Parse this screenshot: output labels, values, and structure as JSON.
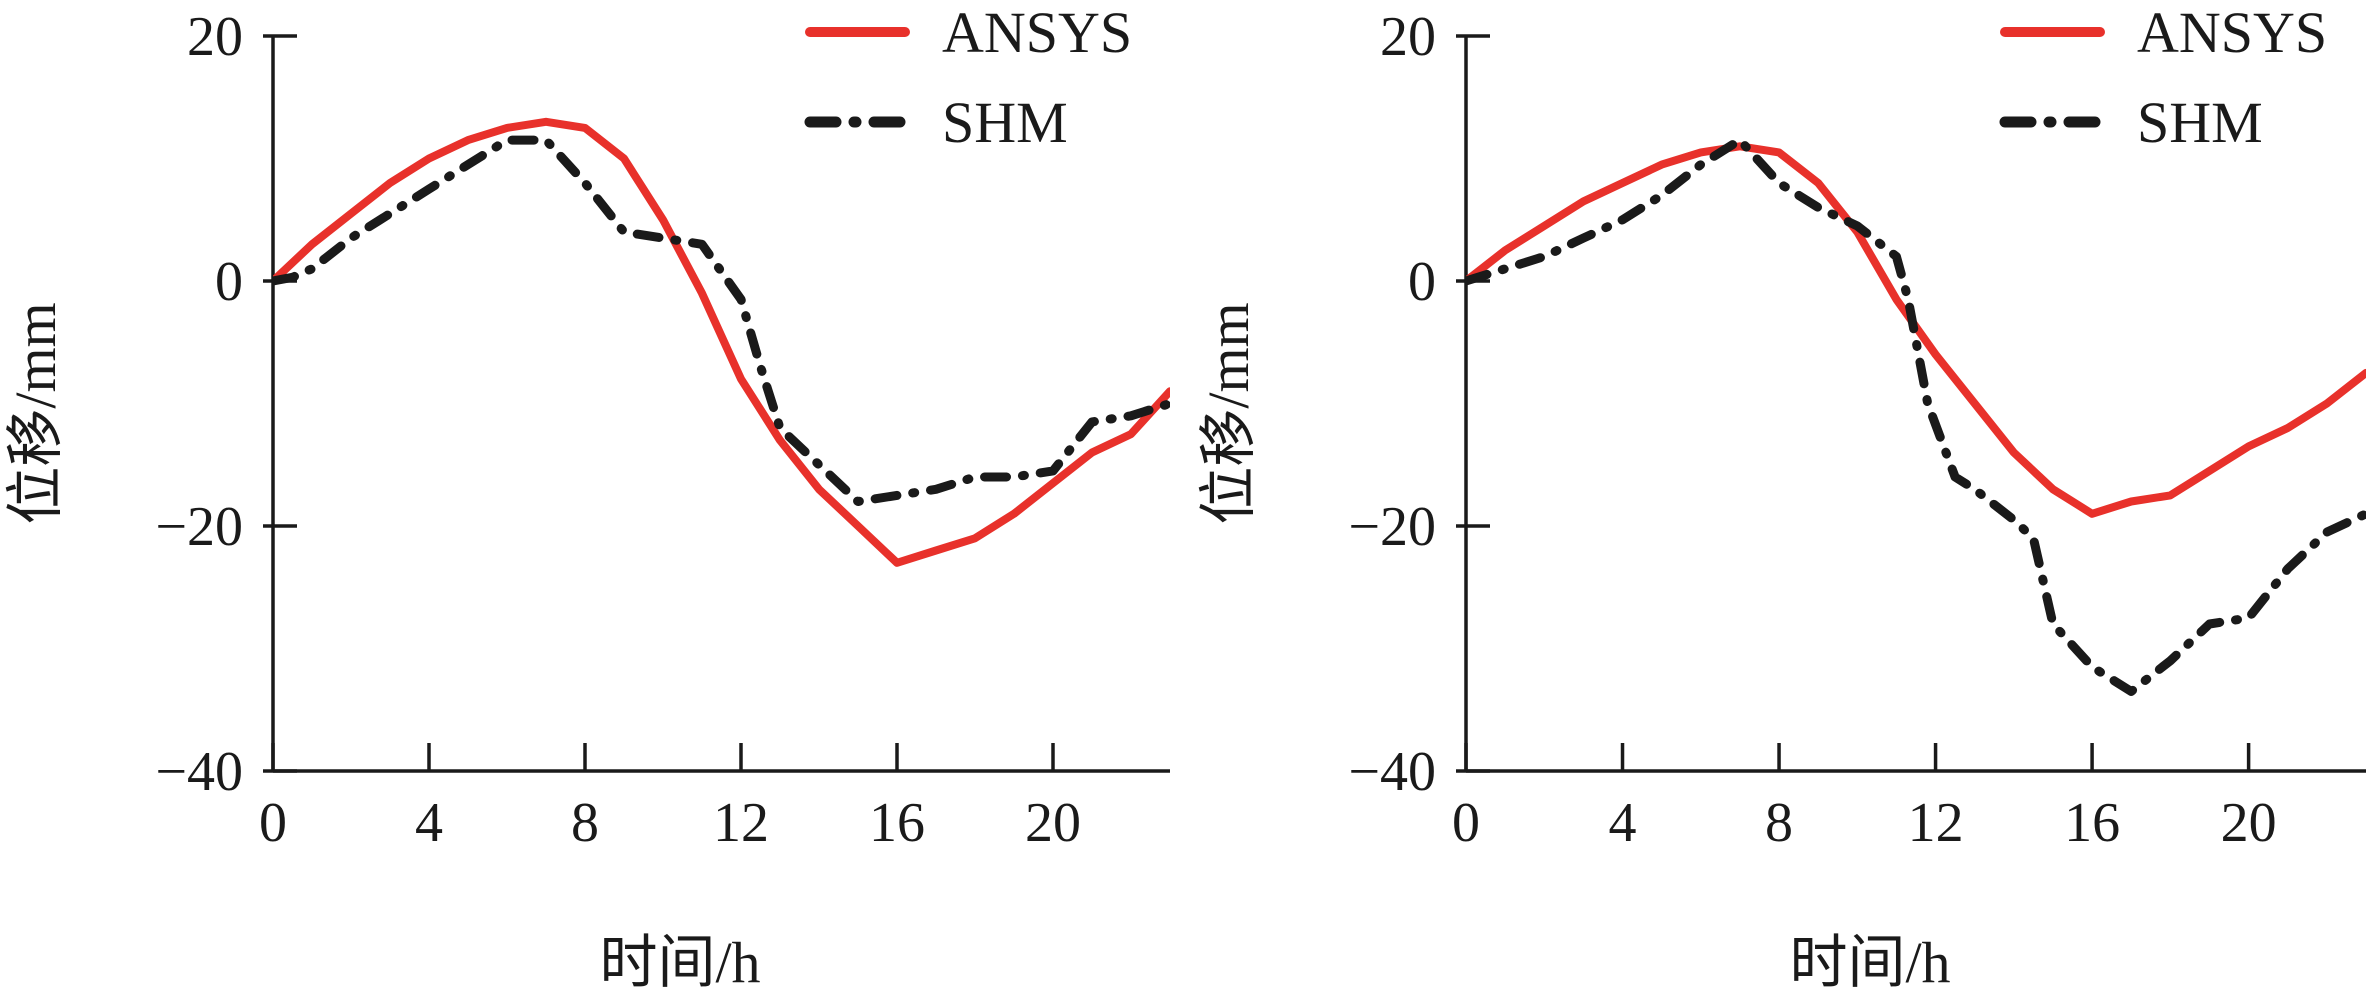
{
  "chart_data": [
    {
      "type": "line",
      "xlabel": "时间/h",
      "ylabel": "位移/mm",
      "xlim": [
        0,
        23
      ],
      "ylim": [
        -40,
        20
      ],
      "xticks": [
        0,
        4,
        8,
        12,
        16,
        20
      ],
      "yticks": [
        20,
        0,
        -20,
        -40
      ],
      "xtick_labels": [
        "0",
        "4",
        "8",
        "12",
        "16",
        "20"
      ],
      "ytick_labels": [
        "20",
        "0",
        "−20",
        "−40"
      ],
      "legend_position": "top-right",
      "grid": false,
      "series": [
        {
          "name": "ANSYS",
          "style": "solid",
          "color": "#e8312b",
          "x": [
            0,
            1,
            2,
            3,
            4,
            5,
            6,
            7,
            8,
            9,
            10,
            11,
            12,
            13,
            14,
            15,
            16,
            17,
            18,
            19,
            20,
            21,
            22,
            23
          ],
          "y": [
            0,
            3,
            5.5,
            8,
            10,
            11.5,
            12.5,
            13,
            12.5,
            10,
            5,
            -1,
            -8,
            -13,
            -17,
            -20,
            -23,
            -22,
            -21,
            -19,
            -16.5,
            -14,
            -12.5,
            -9
          ]
        },
        {
          "name": "SHM",
          "style": "dashdot",
          "color": "#1a1a1a",
          "x": [
            0,
            0.5,
            1,
            2,
            3,
            4,
            5,
            6,
            7,
            8,
            9,
            10,
            11,
            12,
            12.5,
            13,
            14,
            15,
            16,
            17,
            18,
            19,
            20,
            21,
            22,
            23
          ],
          "y": [
            0,
            0.3,
            1,
            3.5,
            5.5,
            7.5,
            9.5,
            11.5,
            11.5,
            8,
            4,
            3.5,
            3,
            -1.5,
            -7,
            -12,
            -15,
            -18,
            -17.5,
            -17,
            -16,
            -16,
            -15.5,
            -11.5,
            -11,
            -10
          ]
        }
      ]
    },
    {
      "type": "line",
      "xlabel": "时间/h",
      "ylabel": "位移/mm",
      "xlim": [
        0,
        23
      ],
      "ylim": [
        -40,
        20
      ],
      "xticks": [
        0,
        4,
        8,
        12,
        16,
        20
      ],
      "yticks": [
        20,
        0,
        -20,
        -40
      ],
      "xtick_labels": [
        "0",
        "4",
        "8",
        "12",
        "16",
        "20"
      ],
      "ytick_labels": [
        "20",
        "0",
        "−20",
        "−40"
      ],
      "legend_position": "top-right",
      "grid": false,
      "series": [
        {
          "name": "ANSYS",
          "style": "solid",
          "color": "#e8312b",
          "x": [
            0,
            1,
            2,
            3,
            4,
            5,
            6,
            7,
            8,
            9,
            10,
            11,
            12,
            13,
            14,
            15,
            16,
            17,
            18,
            19,
            20,
            21,
            22,
            23
          ],
          "y": [
            0,
            2.5,
            4.5,
            6.5,
            8,
            9.5,
            10.5,
            11,
            10.5,
            8,
            4,
            -1.5,
            -6,
            -10,
            -14,
            -17,
            -19,
            -18,
            -17.5,
            -15.5,
            -13.5,
            -12,
            -10,
            -7.5
          ]
        },
        {
          "name": "SHM",
          "style": "dashdot",
          "color": "#1a1a1a",
          "x": [
            0,
            1,
            2,
            3,
            4,
            5,
            6,
            7,
            8,
            9,
            10,
            11,
            11.3,
            11.8,
            12.5,
            13,
            14,
            14.5,
            15,
            16,
            17,
            18,
            19,
            20,
            21,
            22,
            23
          ],
          "y": [
            0,
            1,
            2,
            3.5,
            5,
            7,
            9.5,
            11.5,
            8,
            6,
            4.5,
            2,
            -1.5,
            -10,
            -16,
            -17,
            -19.5,
            -21,
            -28,
            -31.5,
            -33.5,
            -31,
            -28,
            -27.5,
            -23.5,
            -20.5,
            -19
          ]
        }
      ]
    }
  ]
}
